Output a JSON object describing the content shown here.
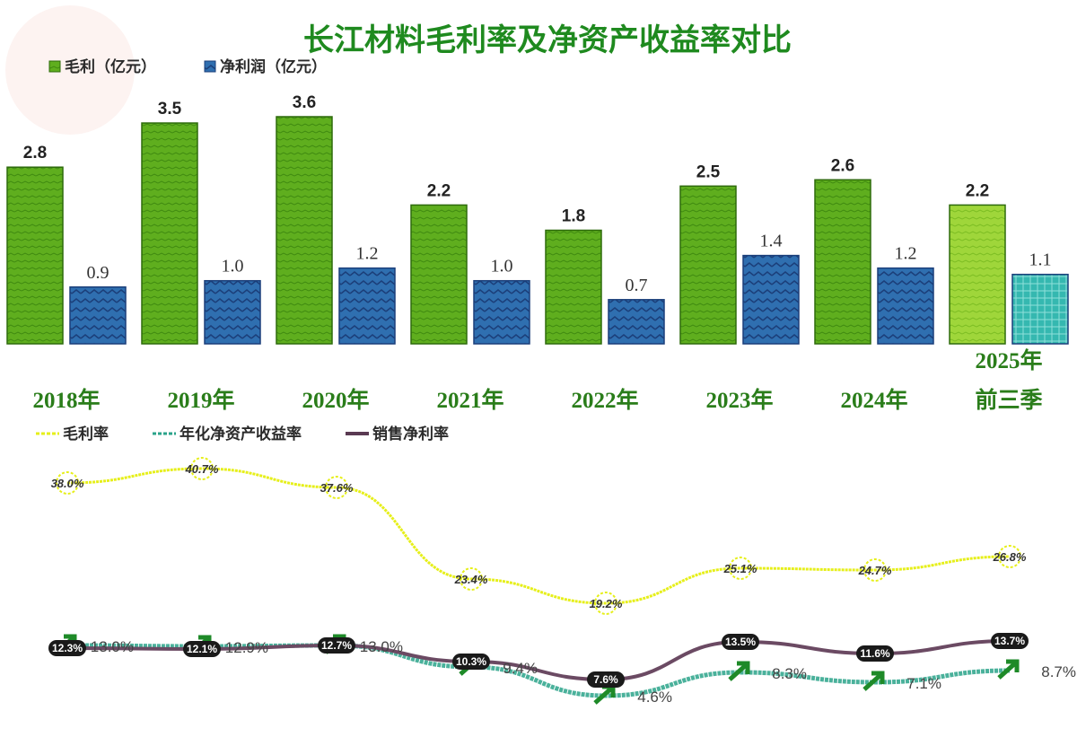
{
  "chart_data": [
    {
      "type": "bar",
      "title": "长江材料毛利率及净资产收益率对比",
      "categories": [
        "2018年",
        "2019年",
        "2020年",
        "2021年",
        "2022年",
        "2023年",
        "2024年",
        "2025年前三季"
      ],
      "category_lines": [
        [
          "2018年"
        ],
        [
          "2019年"
        ],
        [
          "2020年"
        ],
        [
          "2021年"
        ],
        [
          "2022年"
        ],
        [
          "2023年"
        ],
        [
          "2024年"
        ],
        [
          "2025年",
          "前三季"
        ]
      ],
      "series": [
        {
          "name": "毛利（亿元）",
          "values": [
            2.8,
            3.5,
            3.6,
            2.2,
            1.8,
            2.5,
            2.6,
            2.2
          ],
          "color": "#5fae1e"
        },
        {
          "name": "净利润（亿元）",
          "values": [
            0.9,
            1.0,
            1.2,
            1.0,
            0.7,
            1.4,
            1.2,
            1.1
          ],
          "color": "#2f6fb0"
        }
      ],
      "ylim": [
        0,
        3.6
      ],
      "legend": "top-left"
    },
    {
      "type": "line",
      "categories": [
        "2018年",
        "2019年",
        "2020年",
        "2021年",
        "2022年",
        "2023年",
        "2024年",
        "2025年前三季"
      ],
      "series": [
        {
          "name": "毛利率",
          "values": [
            38.0,
            40.7,
            37.6,
            23.4,
            19.2,
            25.1,
            24.7,
            26.8
          ],
          "labels": [
            "38.0%",
            "40.7%",
            "37.6%",
            "23.4%",
            "19.2%",
            "25.1%",
            "24.7%",
            "26.8%"
          ],
          "color": "#e6ef1a"
        },
        {
          "name": "年化净资产收益率",
          "values": [
            13.0,
            12.9,
            13.0,
            9.4,
            4.6,
            8.3,
            7.1,
            8.7
          ],
          "labels": [
            "13.0%",
            "12.9%",
            "13.0%",
            "9.4%",
            "4.6%",
            "8.3%",
            "7.1%",
            "8.7%"
          ],
          "color": "#2aa38a"
        },
        {
          "name": "销售净利率",
          "values": [
            12.3,
            12.1,
            12.7,
            10.3,
            7.6,
            13.5,
            11.6,
            13.7
          ],
          "labels": [
            "12.3%",
            "12.1%",
            "12.7%",
            "10.3%",
            "7.6%",
            "13.5%",
            "11.6%",
            "13.7%"
          ],
          "color": "#6b4a63"
        }
      ],
      "legend": "top-left"
    }
  ]
}
